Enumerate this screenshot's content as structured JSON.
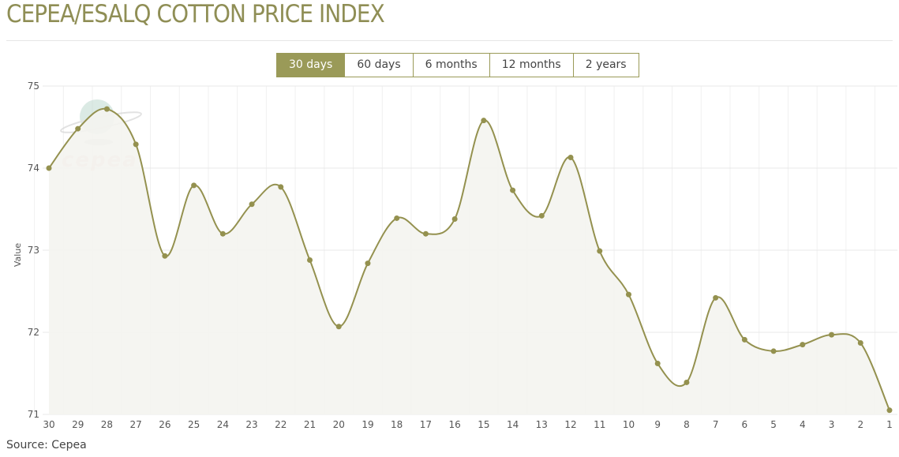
{
  "title": "CEPEA/ESALQ COTTON PRICE INDEX",
  "ranges": [
    {
      "label": "30 days",
      "active": true
    },
    {
      "label": "60 days"
    },
    {
      "label": "6 months"
    },
    {
      "label": "12 months"
    },
    {
      "label": "2 years"
    }
  ],
  "source": "Source: Cepea",
  "watermark": "cepea",
  "colors": {
    "accent": "#9a9a58",
    "fill": "#f4f4f0",
    "grid": "#ececec"
  },
  "chart_data": {
    "type": "area",
    "title": "CEPEA/ESALQ COTTON PRICE INDEX",
    "xlabel": "",
    "ylabel": "Value",
    "ylim": [
      71,
      75
    ],
    "yticks": [
      71,
      72,
      73,
      74,
      75
    ],
    "grid": true,
    "categories": [
      "30",
      "29",
      "28",
      "27",
      "26",
      "25",
      "24",
      "23",
      "22",
      "21",
      "20",
      "19",
      "18",
      "17",
      "16",
      "15",
      "14",
      "13",
      "12",
      "11",
      "10",
      "9",
      "8",
      "7",
      "6",
      "5",
      "4",
      "3",
      "2",
      "1"
    ],
    "values": [
      74.0,
      74.48,
      74.72,
      74.29,
      72.93,
      73.79,
      73.2,
      73.56,
      73.77,
      72.88,
      72.07,
      72.84,
      73.39,
      73.2,
      73.38,
      74.58,
      73.73,
      73.42,
      74.13,
      72.99,
      72.46,
      71.62,
      71.39,
      72.42,
      71.91,
      71.77,
      71.85,
      71.97,
      71.87,
      71.05
    ]
  }
}
